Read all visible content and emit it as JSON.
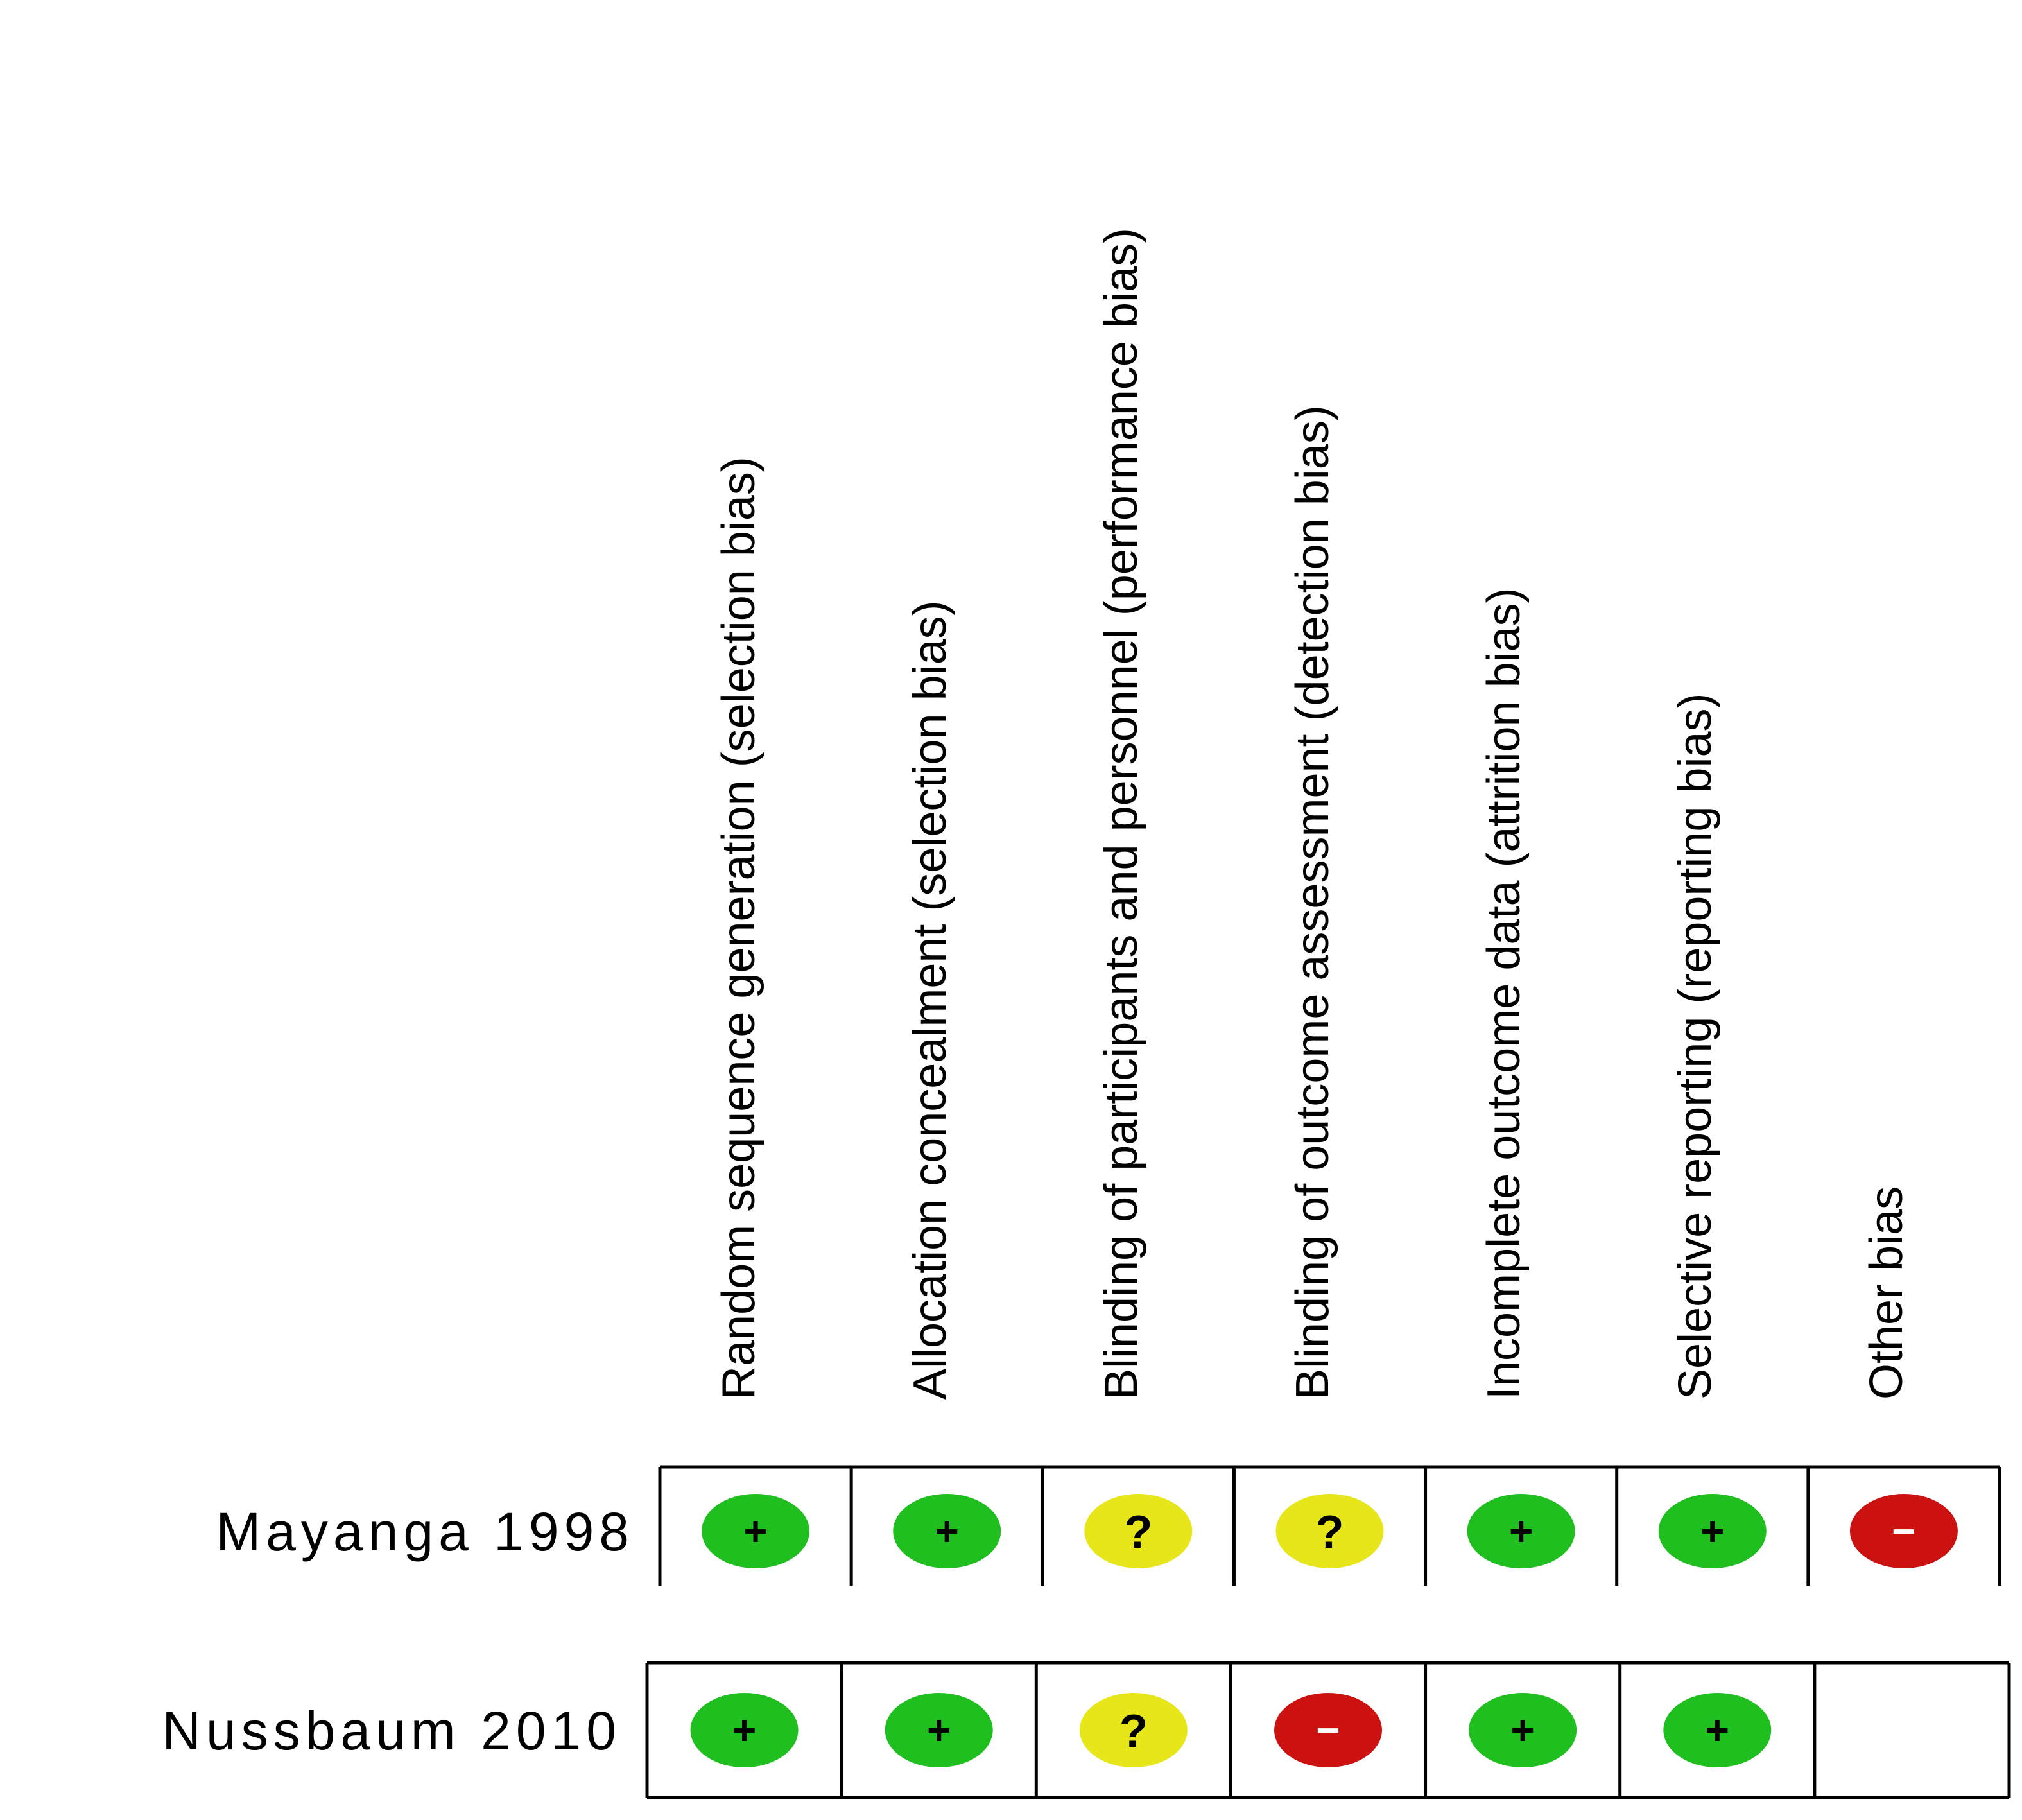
{
  "chart_data": {
    "type": "table",
    "domains": [
      "Random sequence generation (selection bias)",
      "Allocation concealment (selection bias)",
      "Blinding of participants and personnel (performance bias)",
      "Blinding of outcome assessment (detection bias)",
      "Incomplete outcome data (attrition bias)",
      "Selective reporting (reporting bias)",
      "Other bias"
    ],
    "studies": [
      {
        "name": "Mayanga 1998",
        "judgements": [
          "low",
          "low",
          "unclear",
          "unclear",
          "low",
          "low",
          "high"
        ]
      },
      {
        "name": "Nussbaum 2010",
        "judgements": [
          "low",
          "low",
          "unclear",
          "high",
          "low",
          "low",
          "none"
        ]
      }
    ],
    "legend_symbols": {
      "low": "+",
      "unclear": "?",
      "high": "−"
    },
    "colors": {
      "low": "#1fbf1f",
      "unclear": "#e6e61a",
      "high": "#cc1111",
      "grid": "#000000"
    }
  }
}
